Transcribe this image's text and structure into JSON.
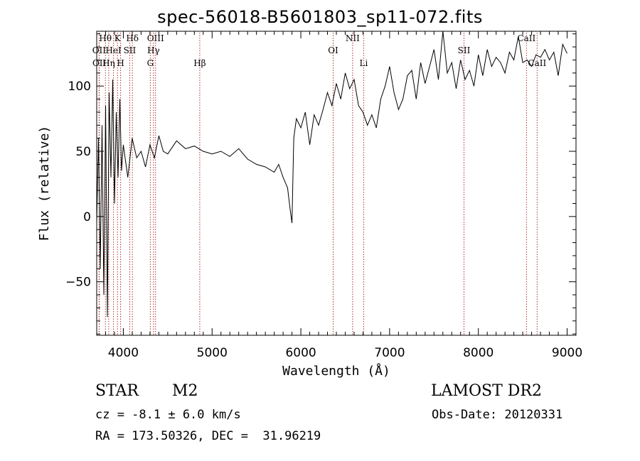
{
  "header": {
    "title": "spec-56018-B5601803_sp11-072.fits"
  },
  "info": {
    "object_class": "STAR",
    "subclass": "M2",
    "survey": "LAMOST DR2",
    "cz": "cz = -8.1 ± 6.0 km/s",
    "obs_date": "Obs-Date: 20120331",
    "radec": "RA = 173.50326, DEC =  31.96219"
  },
  "colors": {
    "spectrum": "#000000",
    "line_marker": "#b03030",
    "axes": "#000000"
  },
  "chart_data": {
    "type": "line",
    "title": "spec-56018-B5601803_sp11-072.fits",
    "xlabel": "Wavelength (Å)",
    "ylabel": "Flux (relative)",
    "xlim": [
      3700,
      9100
    ],
    "ylim": [
      -91,
      142
    ],
    "x_ticks": [
      4000,
      5000,
      6000,
      7000,
      8000,
      9000
    ],
    "x_tick_labels": [
      "4000",
      "5000",
      "6000",
      "7000",
      "8000",
      "9000"
    ],
    "y_ticks": [
      -50,
      0,
      50,
      100
    ],
    "y_tick_labels": [
      "−50",
      "0",
      "50",
      "100"
    ],
    "grid": false,
    "series": [
      {
        "x": [
          3700,
          3720,
          3740,
          3760,
          3780,
          3800,
          3820,
          3840,
          3860,
          3880,
          3900,
          3920,
          3940,
          3960,
          3980,
          4000,
          4050,
          4100,
          4150,
          4200,
          4250,
          4300,
          4350,
          4400,
          4450,
          4500,
          4600,
          4700,
          4800,
          4900,
          5000,
          5100,
          5200,
          5300,
          5400,
          5500,
          5600,
          5700,
          5750,
          5800,
          5850,
          5880,
          5900,
          5920,
          5950,
          6000,
          6050,
          6100,
          6150,
          6200,
          6250,
          6300,
          6350,
          6400,
          6450,
          6500,
          6550,
          6600,
          6650,
          6700,
          6750,
          6800,
          6850,
          6900,
          6950,
          7000,
          7050,
          7100,
          7150,
          7200,
          7250,
          7300,
          7350,
          7400,
          7450,
          7500,
          7550,
          7600,
          7650,
          7700,
          7750,
          7800,
          7850,
          7900,
          7950,
          8000,
          8050,
          8100,
          8150,
          8200,
          8250,
          8300,
          8350,
          8400,
          8450,
          8500,
          8550,
          8600,
          8650,
          8700,
          8750,
          8800,
          8850,
          8900,
          8950,
          9000
        ],
        "y": [
          -5,
          60,
          -40,
          70,
          -60,
          85,
          -77,
          95,
          30,
          105,
          10,
          80,
          30,
          90,
          35,
          55,
          30,
          60,
          45,
          50,
          38,
          55,
          45,
          62,
          50,
          48,
          58,
          52,
          54,
          50,
          48,
          50,
          46,
          52,
          44,
          40,
          38,
          34,
          40,
          30,
          22,
          5,
          -5,
          60,
          75,
          68,
          80,
          55,
          78,
          70,
          82,
          95,
          85,
          102,
          90,
          110,
          98,
          105,
          85,
          80,
          70,
          78,
          68,
          90,
          100,
          115,
          95,
          82,
          90,
          108,
          112,
          90,
          118,
          102,
          115,
          128,
          105,
          142,
          110,
          118,
          98,
          120,
          105,
          112,
          100,
          124,
          108,
          128,
          115,
          122,
          118,
          110,
          126,
          120,
          138,
          118,
          120,
          115,
          124,
          122,
          128,
          120,
          126,
          108,
          132,
          125
        ]
      }
    ],
    "line_markers": [
      {
        "label": "Hθ",
        "x": 3798,
        "row": 0
      },
      {
        "label": "K",
        "x": 3934,
        "row": 0
      },
      {
        "label": "Hδ",
        "x": 4102,
        "row": 0
      },
      {
        "label": "OIII",
        "x": 4363,
        "row": 0
      },
      {
        "label": "NII",
        "x": 6583,
        "row": 0
      },
      {
        "label": "CaII",
        "x": 8542,
        "row": 0
      },
      {
        "label": "OII",
        "x": 3727,
        "row": 1
      },
      {
        "label": "HeI",
        "x": 3889,
        "row": 1
      },
      {
        "label": "SII",
        "x": 4072,
        "row": 1
      },
      {
        "label": "Hγ",
        "x": 4340,
        "row": 1
      },
      {
        "label": "OI",
        "x": 6364,
        "row": 1
      },
      {
        "label": "SII",
        "x": 7838,
        "row": 1
      },
      {
        "label": "OII",
        "x": 3729,
        "row": 2
      },
      {
        "label": "Hη",
        "x": 3835,
        "row": 2
      },
      {
        "label": "H",
        "x": 3969,
        "row": 2
      },
      {
        "label": "G",
        "x": 4304,
        "row": 2
      },
      {
        "label": "Hβ",
        "x": 4861,
        "row": 2
      },
      {
        "label": "Li",
        "x": 6708,
        "row": 2
      },
      {
        "label": "CaII",
        "x": 8662,
        "row": 2
      }
    ]
  }
}
